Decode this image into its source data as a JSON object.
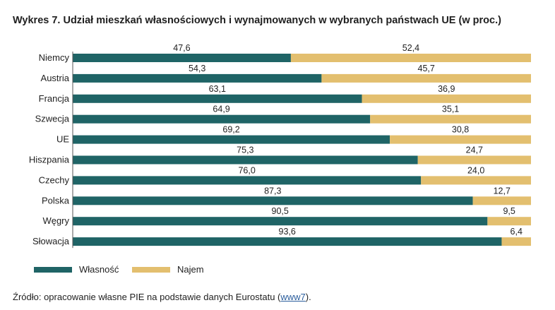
{
  "title": "Wykres 7.  Udział mieszkań własnościowych i wynajmowanych w wybranych państwach UE (w proc.)",
  "chart_data": {
    "type": "bar",
    "orientation": "horizontal",
    "stacked": true,
    "categories": [
      "Niemcy",
      "Austria",
      "Francja",
      "Szwecja",
      "UE",
      "Hiszpania",
      "Czechy",
      "Polska",
      "Węgry",
      "Słowacja"
    ],
    "series": [
      {
        "name": "Własność",
        "color": "#1f6466",
        "values": [
          47.6,
          54.3,
          63.1,
          64.9,
          69.2,
          75.3,
          76.0,
          87.3,
          90.5,
          93.6
        ],
        "labels": [
          "47,6",
          "54,3",
          "63,1",
          "64,9",
          "69,2",
          "75,3",
          "76,0",
          "87,3",
          "90,5",
          "93,6"
        ]
      },
      {
        "name": "Najem",
        "color": "#e3bf6f",
        "values": [
          52.4,
          45.7,
          36.9,
          35.1,
          30.8,
          24.7,
          24.0,
          12.7,
          9.5,
          6.4
        ],
        "labels": [
          "52,4",
          "45,7",
          "36,9",
          "35,1",
          "30,8",
          "24,7",
          "24,0",
          "12,7",
          "9,5",
          "6,4"
        ]
      }
    ],
    "xlim": [
      0,
      100
    ],
    "grid": false,
    "legend_position": "bottom-left"
  },
  "source": {
    "text": "Źródło: opracowanie własne PIE na podstawie danych Eurostatu (",
    "link": "www7",
    "end": ")."
  }
}
